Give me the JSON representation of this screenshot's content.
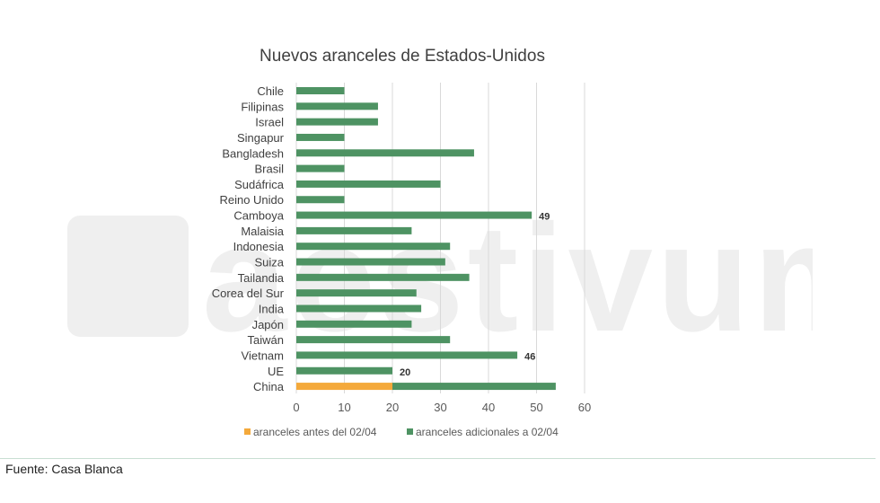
{
  "chart_data": {
    "type": "bar",
    "orientation": "horizontal",
    "stacked": true,
    "title": "Nuevos aranceles de Estados-Unidos",
    "categories": [
      "Chile",
      "Filipinas",
      "Israel",
      "Singapur",
      "Bangladesh",
      "Brasil",
      "Sudáfrica",
      "Reino Unido",
      "Camboya",
      "Malaisia",
      "Indonesia",
      "Suiza",
      "Tailandia",
      "Corea del Sur",
      "India",
      "Japón",
      "Taiwán",
      "Vietnam",
      "UE",
      "China"
    ],
    "series": [
      {
        "name": "aranceles antes del 02/04",
        "color": "#f4a93b",
        "values": [
          0,
          0,
          0,
          0,
          0,
          0,
          0,
          0,
          0,
          0,
          0,
          0,
          0,
          0,
          0,
          0,
          0,
          0,
          0,
          20
        ]
      },
      {
        "name": "aranceles adicionales a 02/04",
        "color": "#4e9363",
        "values": [
          10,
          17,
          17,
          10,
          37,
          10,
          30,
          10,
          49,
          24,
          32,
          31,
          36,
          25,
          26,
          24,
          32,
          46,
          20,
          34
        ]
      }
    ],
    "data_labels": [
      {
        "category": "Camboya",
        "text": "49"
      },
      {
        "category": "Vietnam",
        "text": "46"
      },
      {
        "category": "UE",
        "text": "20"
      }
    ],
    "xlim": [
      0,
      60
    ],
    "xticks": [
      "0",
      "10",
      "20",
      "30",
      "40",
      "50",
      "60"
    ],
    "grid": true,
    "legend": "bottom"
  },
  "watermark": "aestivum",
  "footer": "Fuente: Casa Blanca"
}
